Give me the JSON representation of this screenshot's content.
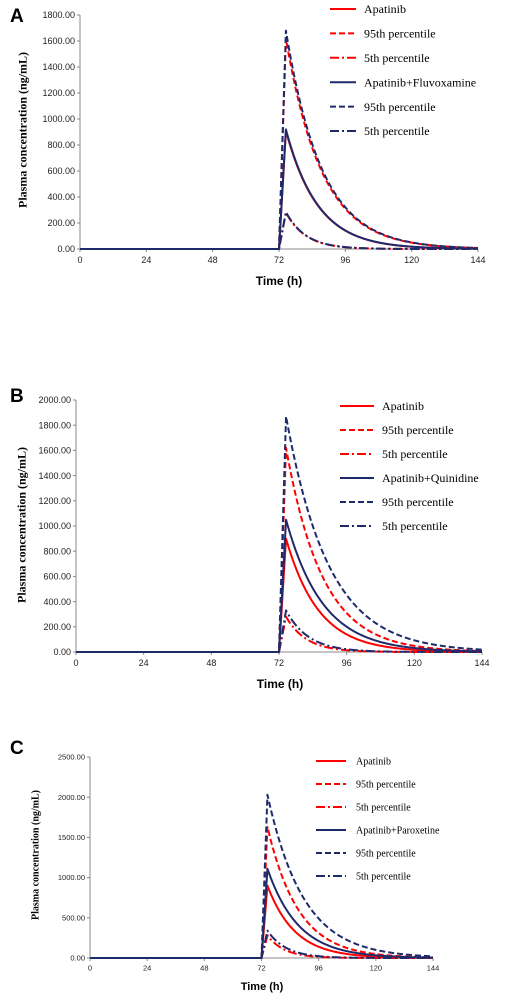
{
  "chart_data": [
    {
      "panel": "A",
      "type": "line",
      "xlabel": "Time (h)",
      "ylabel": "Plasma concentration (ng/mL)",
      "xlim": [
        0,
        144
      ],
      "ylim": [
        0,
        1800
      ],
      "x_ticks": [
        "0",
        "24",
        "48",
        "72",
        "96",
        "120",
        "144"
      ],
      "y_ticks": [
        "0.00",
        "200.00",
        "400.00",
        "600.00",
        "800.00",
        "1000.00",
        "1200.00",
        "1400.00",
        "1600.00",
        "1800.00"
      ],
      "legend_position": "top-right",
      "series": [
        {
          "name": "Apatinib",
          "color": "#ff0000",
          "dash": "solid",
          "dose_time": 72,
          "peak_time": 74.5,
          "peak": 910,
          "half_life": 8
        },
        {
          "name": "95th percentile",
          "color": "#ff0000",
          "dash": "dashed",
          "dose_time": 72,
          "peak_time": 74.5,
          "peak": 1620,
          "half_life": 9
        },
        {
          "name": "5th percentile",
          "color": "#ff0000",
          "dash": "dashdot",
          "dose_time": 72,
          "peak_time": 74.5,
          "peak": 280,
          "half_life": 5
        },
        {
          "name": "Apatinib+Fluvoxamine",
          "color": "#1f2a6b",
          "dash": "solid",
          "dose_time": 72,
          "peak_time": 74.5,
          "peak": 920,
          "half_life": 8
        },
        {
          "name": "95th percentile",
          "color": "#1f2a6b",
          "dash": "dashed",
          "dose_time": 72,
          "peak_time": 74.5,
          "peak": 1680,
          "half_life": 9
        },
        {
          "name": "5th percentile",
          "color": "#1f2a6b",
          "dash": "dashdot",
          "dose_time": 72,
          "peak_time": 74.5,
          "peak": 285,
          "half_life": 5
        }
      ]
    },
    {
      "panel": "B",
      "type": "line",
      "xlabel": "Time (h)",
      "ylabel": "Plasma concentration (ng/mL)",
      "xlim": [
        0,
        144
      ],
      "ylim": [
        0,
        2000
      ],
      "x_ticks": [
        "0",
        "24",
        "48",
        "72",
        "96",
        "120",
        "144"
      ],
      "y_ticks": [
        "0.00",
        "200.00",
        "400.00",
        "600.00",
        "800.00",
        "1000.00",
        "1200.00",
        "1400.00",
        "1600.00",
        "1800.00",
        "2000.00"
      ],
      "legend_position": "top-right",
      "series": [
        {
          "name": "Apatinib",
          "color": "#ff0000",
          "dash": "solid",
          "dose_time": 72,
          "peak_time": 74.5,
          "peak": 900,
          "half_life": 8
        },
        {
          "name": "95th percentile",
          "color": "#ff0000",
          "dash": "dashed",
          "dose_time": 72,
          "peak_time": 74.5,
          "peak": 1620,
          "half_life": 9
        },
        {
          "name": "5th percentile",
          "color": "#ff0000",
          "dash": "dashdot",
          "dose_time": 72,
          "peak_time": 74.5,
          "peak": 280,
          "half_life": 5
        },
        {
          "name": "Apatinib+Quinidine",
          "color": "#1f2a6b",
          "dash": "solid",
          "dose_time": 72,
          "peak_time": 74.5,
          "peak": 1050,
          "half_life": 9
        },
        {
          "name": "95th percentile",
          "color": "#1f2a6b",
          "dash": "dashed",
          "dose_time": 72,
          "peak_time": 74.5,
          "peak": 1870,
          "half_life": 10.5
        },
        {
          "name": "5th percentile",
          "color": "#1f2a6b",
          "dash": "dashdot",
          "dose_time": 72,
          "peak_time": 74.5,
          "peak": 330,
          "half_life": 5.5
        }
      ]
    },
    {
      "panel": "C",
      "type": "line",
      "xlabel": "Time (h)",
      "ylabel": "Plasma concentration (ng/mL)",
      "xlim": [
        0,
        144
      ],
      "ylim": [
        0,
        2500
      ],
      "x_ticks": [
        "0",
        "24",
        "48",
        "72",
        "96",
        "120",
        "144"
      ],
      "y_ticks": [
        "0.00",
        "500.00",
        "1000.00",
        "1500.00",
        "2000.00",
        "2500.00"
      ],
      "legend_position": "top-right",
      "series": [
        {
          "name": "Apatinib",
          "color": "#ff0000",
          "dash": "solid",
          "dose_time": 72,
          "peak_time": 74.5,
          "peak": 900,
          "half_life": 8
        },
        {
          "name": "95th percentile",
          "color": "#ff0000",
          "dash": "dashed",
          "dose_time": 72,
          "peak_time": 74.5,
          "peak": 1630,
          "half_life": 9
        },
        {
          "name": "5th percentile",
          "color": "#ff0000",
          "dash": "dashdot",
          "dose_time": 72,
          "peak_time": 74.5,
          "peak": 280,
          "half_life": 5
        },
        {
          "name": "Apatinib+Paroxetine",
          "color": "#1f2a6b",
          "dash": "solid",
          "dose_time": 72,
          "peak_time": 74.5,
          "peak": 1110,
          "half_life": 9
        },
        {
          "name": "95th percentile",
          "color": "#1f2a6b",
          "dash": "dashed",
          "dose_time": 72,
          "peak_time": 74.5,
          "peak": 2030,
          "half_life": 10.5
        },
        {
          "name": "5th percentile",
          "color": "#1f2a6b",
          "dash": "dashdot",
          "dose_time": 72,
          "peak_time": 74.5,
          "peak": 340,
          "half_life": 5.5
        }
      ]
    }
  ]
}
